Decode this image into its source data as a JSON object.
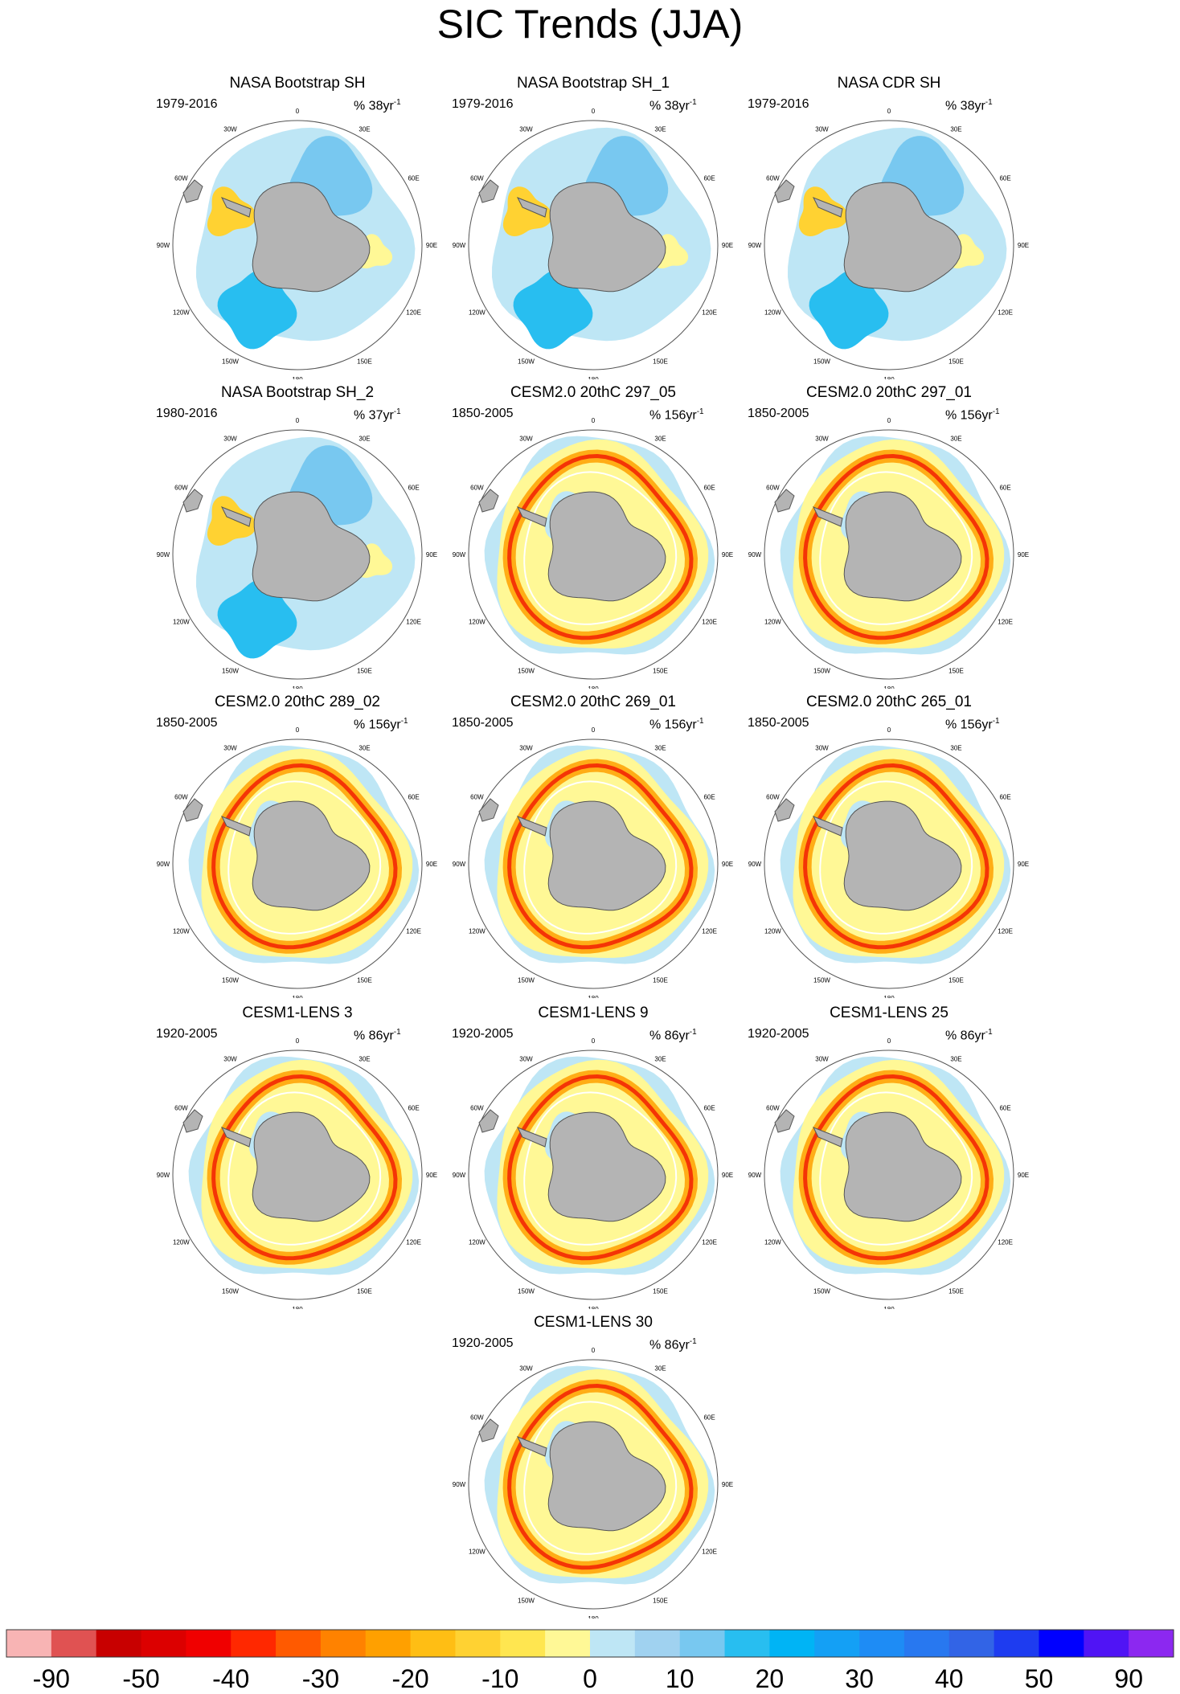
{
  "title": "SIC Trends (JJA)",
  "longitude_labels": [
    "0",
    "30E",
    "60E",
    "90E",
    "120E",
    "150E",
    "180",
    "150W",
    "120W",
    "90W",
    "60W",
    "30W"
  ],
  "longitude_angles": [
    0,
    30,
    60,
    90,
    120,
    150,
    180,
    210,
    240,
    270,
    300,
    330
  ],
  "panels": [
    {
      "title": "NASA Bootstrap SH",
      "period": "1979-2016",
      "units": "% 38yr",
      "units_exp": "-1",
      "pattern": "obs"
    },
    {
      "title": "NASA Bootstrap SH_1",
      "period": "1979-2016",
      "units": "% 38yr",
      "units_exp": "-1",
      "pattern": "obs"
    },
    {
      "title": "NASA CDR SH",
      "period": "1979-2016",
      "units": "% 38yr",
      "units_exp": "-1",
      "pattern": "obs"
    },
    {
      "title": "NASA Bootstrap SH_2",
      "period": "1980-2016",
      "units": "% 37yr",
      "units_exp": "-1",
      "pattern": "obs"
    },
    {
      "title": "CESM2.0 20thC 297_05",
      "period": "1850-2005",
      "units": "% 156yr",
      "units_exp": "-1",
      "pattern": "model"
    },
    {
      "title": "CESM2.0 20thC 297_01",
      "period": "1850-2005",
      "units": "% 156yr",
      "units_exp": "-1",
      "pattern": "model"
    },
    {
      "title": "CESM2.0 20thC 289_02",
      "period": "1850-2005",
      "units": "% 156yr",
      "units_exp": "-1",
      "pattern": "model"
    },
    {
      "title": "CESM2.0 20thC 269_01",
      "period": "1850-2005",
      "units": "% 156yr",
      "units_exp": "-1",
      "pattern": "model"
    },
    {
      "title": "CESM2.0 20thC 265_01",
      "period": "1850-2005",
      "units": "% 156yr",
      "units_exp": "-1",
      "pattern": "model"
    },
    {
      "title": "CESM1-LENS 3",
      "period": "1920-2005",
      "units": "% 86yr",
      "units_exp": "-1",
      "pattern": "model"
    },
    {
      "title": "CESM1-LENS 9",
      "period": "1920-2005",
      "units": "% 86yr",
      "units_exp": "-1",
      "pattern": "model"
    },
    {
      "title": "CESM1-LENS 25",
      "period": "1920-2005",
      "units": "% 86yr",
      "units_exp": "-1",
      "pattern": "model"
    },
    {
      "title": "CESM1-LENS 30",
      "period": "1920-2005",
      "units": "% 86yr",
      "units_exp": "-1",
      "pattern": "model"
    }
  ],
  "colorbar": {
    "colors": [
      "#f8b4b4",
      "#e05252",
      "#c80000",
      "#dc0000",
      "#f00000",
      "#ff2800",
      "#ff5a00",
      "#ff8200",
      "#ffa000",
      "#ffbe14",
      "#ffd232",
      "#ffe650",
      "#fff896",
      "#bee6f5",
      "#a0d2f0",
      "#78c8f0",
      "#28bef0",
      "#00b4f5",
      "#14a0f5",
      "#1e8cf5",
      "#2878f0",
      "#3264e6",
      "#1e3cf0",
      "#0000ff",
      "#5014f5",
      "#8c28f0"
    ],
    "tick_labels": [
      "-90",
      "-50",
      "-40",
      "-30",
      "-20",
      "-10",
      "0",
      "10",
      "20",
      "30",
      "40",
      "50",
      "90"
    ]
  }
}
